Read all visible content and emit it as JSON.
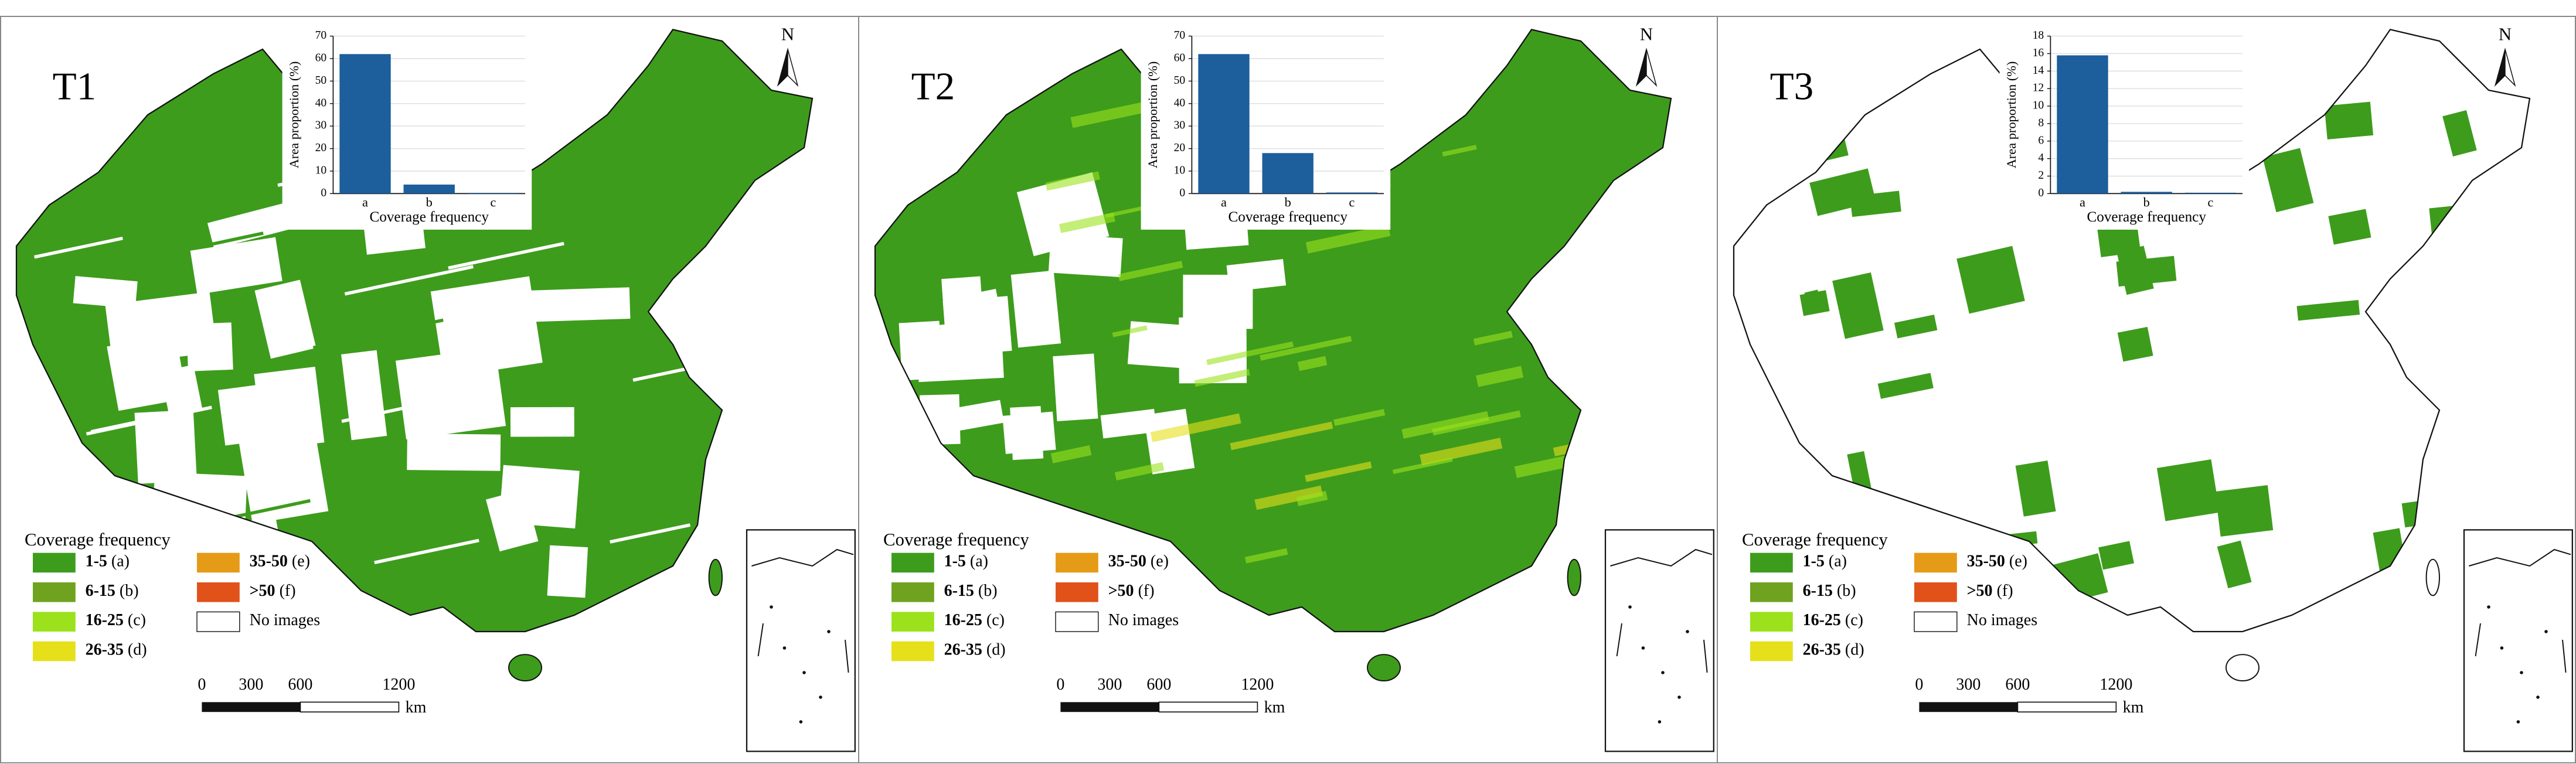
{
  "panels": [
    {
      "label": "T1"
    },
    {
      "label": "T2"
    },
    {
      "label": "T3"
    }
  ],
  "chart_data": [
    {
      "type": "bar",
      "categories": [
        "a",
        "b",
        "c"
      ],
      "values": [
        62,
        4,
        0.3
      ],
      "color": "#1d5e9c",
      "xlabel": "Coverage frequency",
      "ylabel": "Area proportion (%)",
      "ylim": [
        0,
        70
      ],
      "yticks": [
        0,
        10,
        20,
        30,
        40,
        50,
        60,
        70
      ]
    },
    {
      "type": "bar",
      "categories": [
        "a",
        "b",
        "c"
      ],
      "values": [
        62,
        18,
        0.5
      ],
      "color": "#1d5e9c",
      "xlabel": "Coverage frequency",
      "ylabel": "Area proportion (%)",
      "ylim": [
        0,
        70
      ],
      "yticks": [
        0,
        10,
        20,
        30,
        40,
        50,
        60,
        70
      ]
    },
    {
      "type": "bar",
      "categories": [
        "a",
        "b",
        "c"
      ],
      "values": [
        15.8,
        0.2,
        0.1
      ],
      "color": "#1d5e9c",
      "xlabel": "Coverage frequency",
      "ylabel": "Area proportion (%)",
      "ylim": [
        0,
        18
      ],
      "yticks": [
        0,
        2,
        4,
        6,
        8,
        10,
        12,
        14,
        16,
        18
      ]
    }
  ],
  "legend": {
    "title": "Coverage frequency",
    "items": [
      {
        "range": "1-5",
        "code": "(a)",
        "color": "#3d9c1c"
      },
      {
        "range": "6-15",
        "code": "(b)",
        "color": "#6fa31f"
      },
      {
        "range": "16-25",
        "code": "(c)",
        "color": "#9be21c"
      },
      {
        "range": "26-35",
        "code": "(d)",
        "color": "#e6e01a"
      },
      {
        "range": "35-50",
        "code": "(e)",
        "color": "#e59b17"
      },
      {
        "range": ">50",
        "code": "(f)",
        "color": "#e0521a"
      },
      {
        "range": "No images",
        "color": "#ffffff"
      }
    ]
  },
  "scale_bar": {
    "ticks": [
      0,
      300,
      600,
      1200
    ],
    "unit": "km"
  },
  "north": "N"
}
